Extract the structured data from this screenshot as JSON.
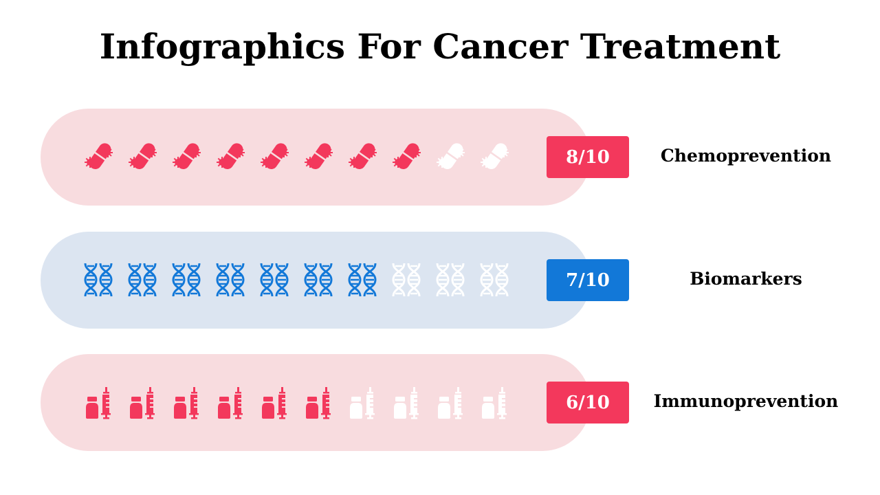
{
  "title": "Infographics For Cancer Treatment",
  "colors": {
    "red": "#f3385c",
    "red_bg": "#f8dcdf",
    "blue": "#1278d8",
    "blue_bg": "#dce5f1",
    "inactive": "#ffffff"
  },
  "rows": [
    {
      "label": "Chemoprevention",
      "score": "8/10",
      "filled": 8,
      "total": 10,
      "icon": "pill-virus-icon",
      "accent": "#f3385c",
      "bg": "#f8dcdf"
    },
    {
      "label": "Biomarkers",
      "score": "7/10",
      "filled": 7,
      "total": 10,
      "icon": "dna-icon",
      "accent": "#1278d8",
      "bg": "#dce5f1"
    },
    {
      "label": "Immunoprevention",
      "score": "6/10",
      "filled": 6,
      "total": 10,
      "icon": "vaccine-syringe-icon",
      "accent": "#f3385c",
      "bg": "#f8dcdf"
    }
  ]
}
